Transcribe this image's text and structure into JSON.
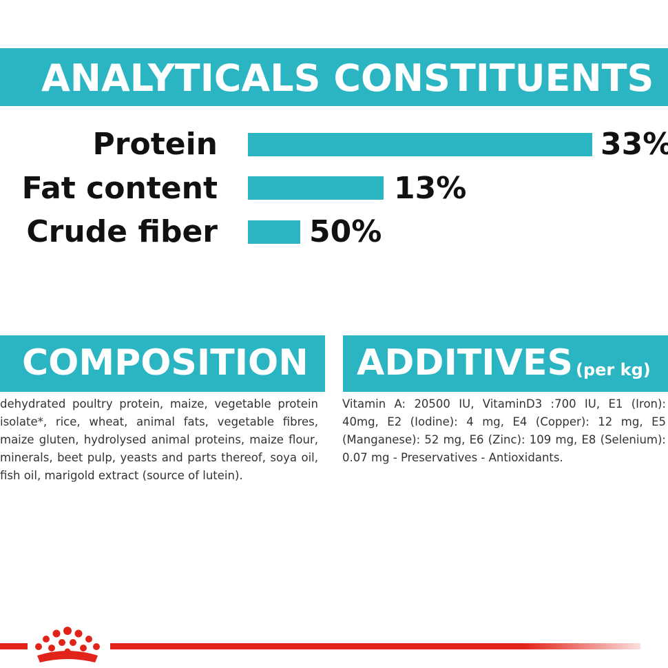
{
  "analyticals": {
    "title": "ANALYTICALS CONSTITUENTS",
    "rows": [
      {
        "label": "Protein",
        "value": "33%"
      },
      {
        "label": "Fat content",
        "value": "13%"
      },
      {
        "label": "Crude fiber",
        "value": "50%"
      }
    ],
    "bar_color": "#2bb5c3"
  },
  "composition": {
    "title": "COMPOSITION",
    "text": "dehydrated poultry protein, maize, vegetable protein isolate*, rice, wheat, animal fats, vegetable fibres, maize gluten, hydrolysed animal proteins, maize flour, minerals, beet pulp, yeasts and parts thereof, soya oil, fish oil, marigold extract (source of lutein)."
  },
  "additives": {
    "title": "ADDITIVES",
    "subtitle": "(per kg)",
    "text": "Vitamin A: 20500 IU, VitaminD3 :700 IU, E1 (Iron): 40mg, E2 (Iodine): 4 mg, E4 (Copper): 12 mg, E5 (Manganese): 52 mg, E6 (Zinc): 109 mg, E8 (Selenium): 0.07 mg - Preservatives - Antioxidants."
  },
  "footer": {
    "logo_icon": "crown-icon",
    "accent_color": "#e2231a"
  }
}
